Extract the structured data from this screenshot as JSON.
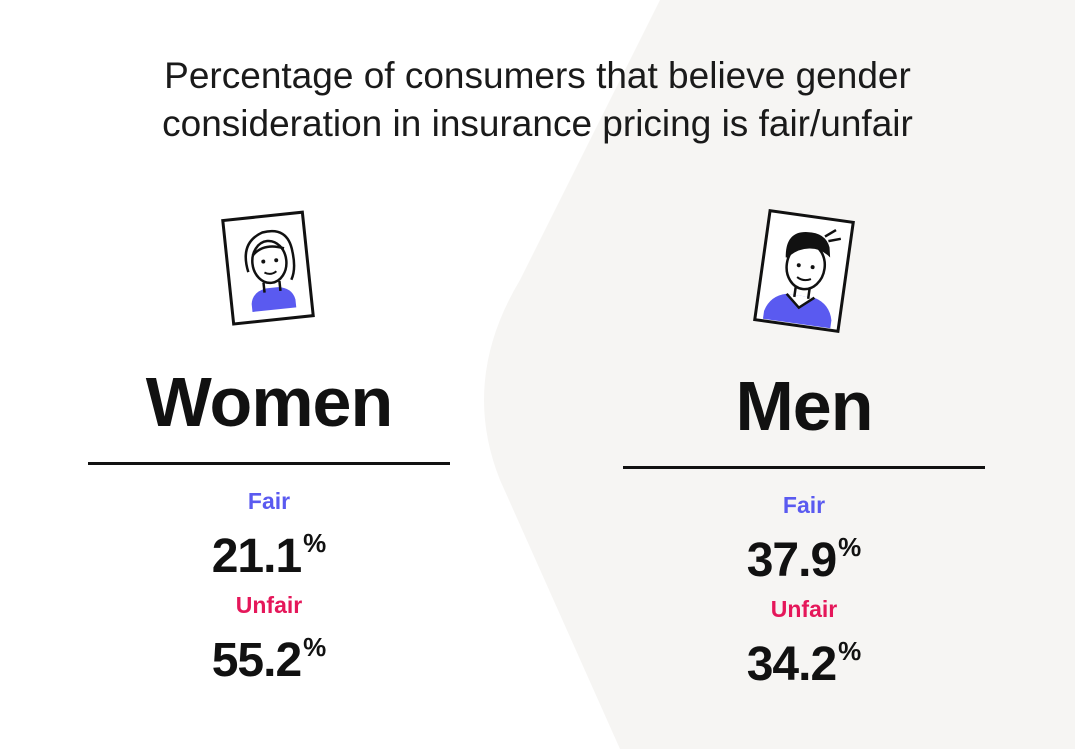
{
  "chart_data": {
    "type": "table",
    "title": "Percentage of consumers that believe gender consideration in insurance pricing is fair/unfair",
    "title_lines": [
      "Percentage of consumers that believe gender",
      "consideration in insurance pricing is fair/unfair"
    ],
    "categories": [
      "Women",
      "Men"
    ],
    "groups": [
      {
        "name": "Women",
        "icon": "woman-portrait-icon",
        "stats": [
          {
            "label": "Fair",
            "value": 21.1,
            "display": "21.1",
            "unit": "%"
          },
          {
            "label": "Unfair",
            "value": 55.2,
            "display": "55.2",
            "unit": "%"
          }
        ]
      },
      {
        "name": "Men",
        "icon": "man-portrait-icon",
        "stats": [
          {
            "label": "Fair",
            "value": 37.9,
            "display": "37.9",
            "unit": "%"
          },
          {
            "label": "Unfair",
            "value": 34.2,
            "display": "34.2",
            "unit": "%"
          }
        ]
      }
    ],
    "colors": {
      "fair": "#5a5af0",
      "unfair": "#e5175a",
      "accent": "#5a5af0",
      "text": "#111111",
      "background_shape": "#f6f5f3"
    }
  }
}
